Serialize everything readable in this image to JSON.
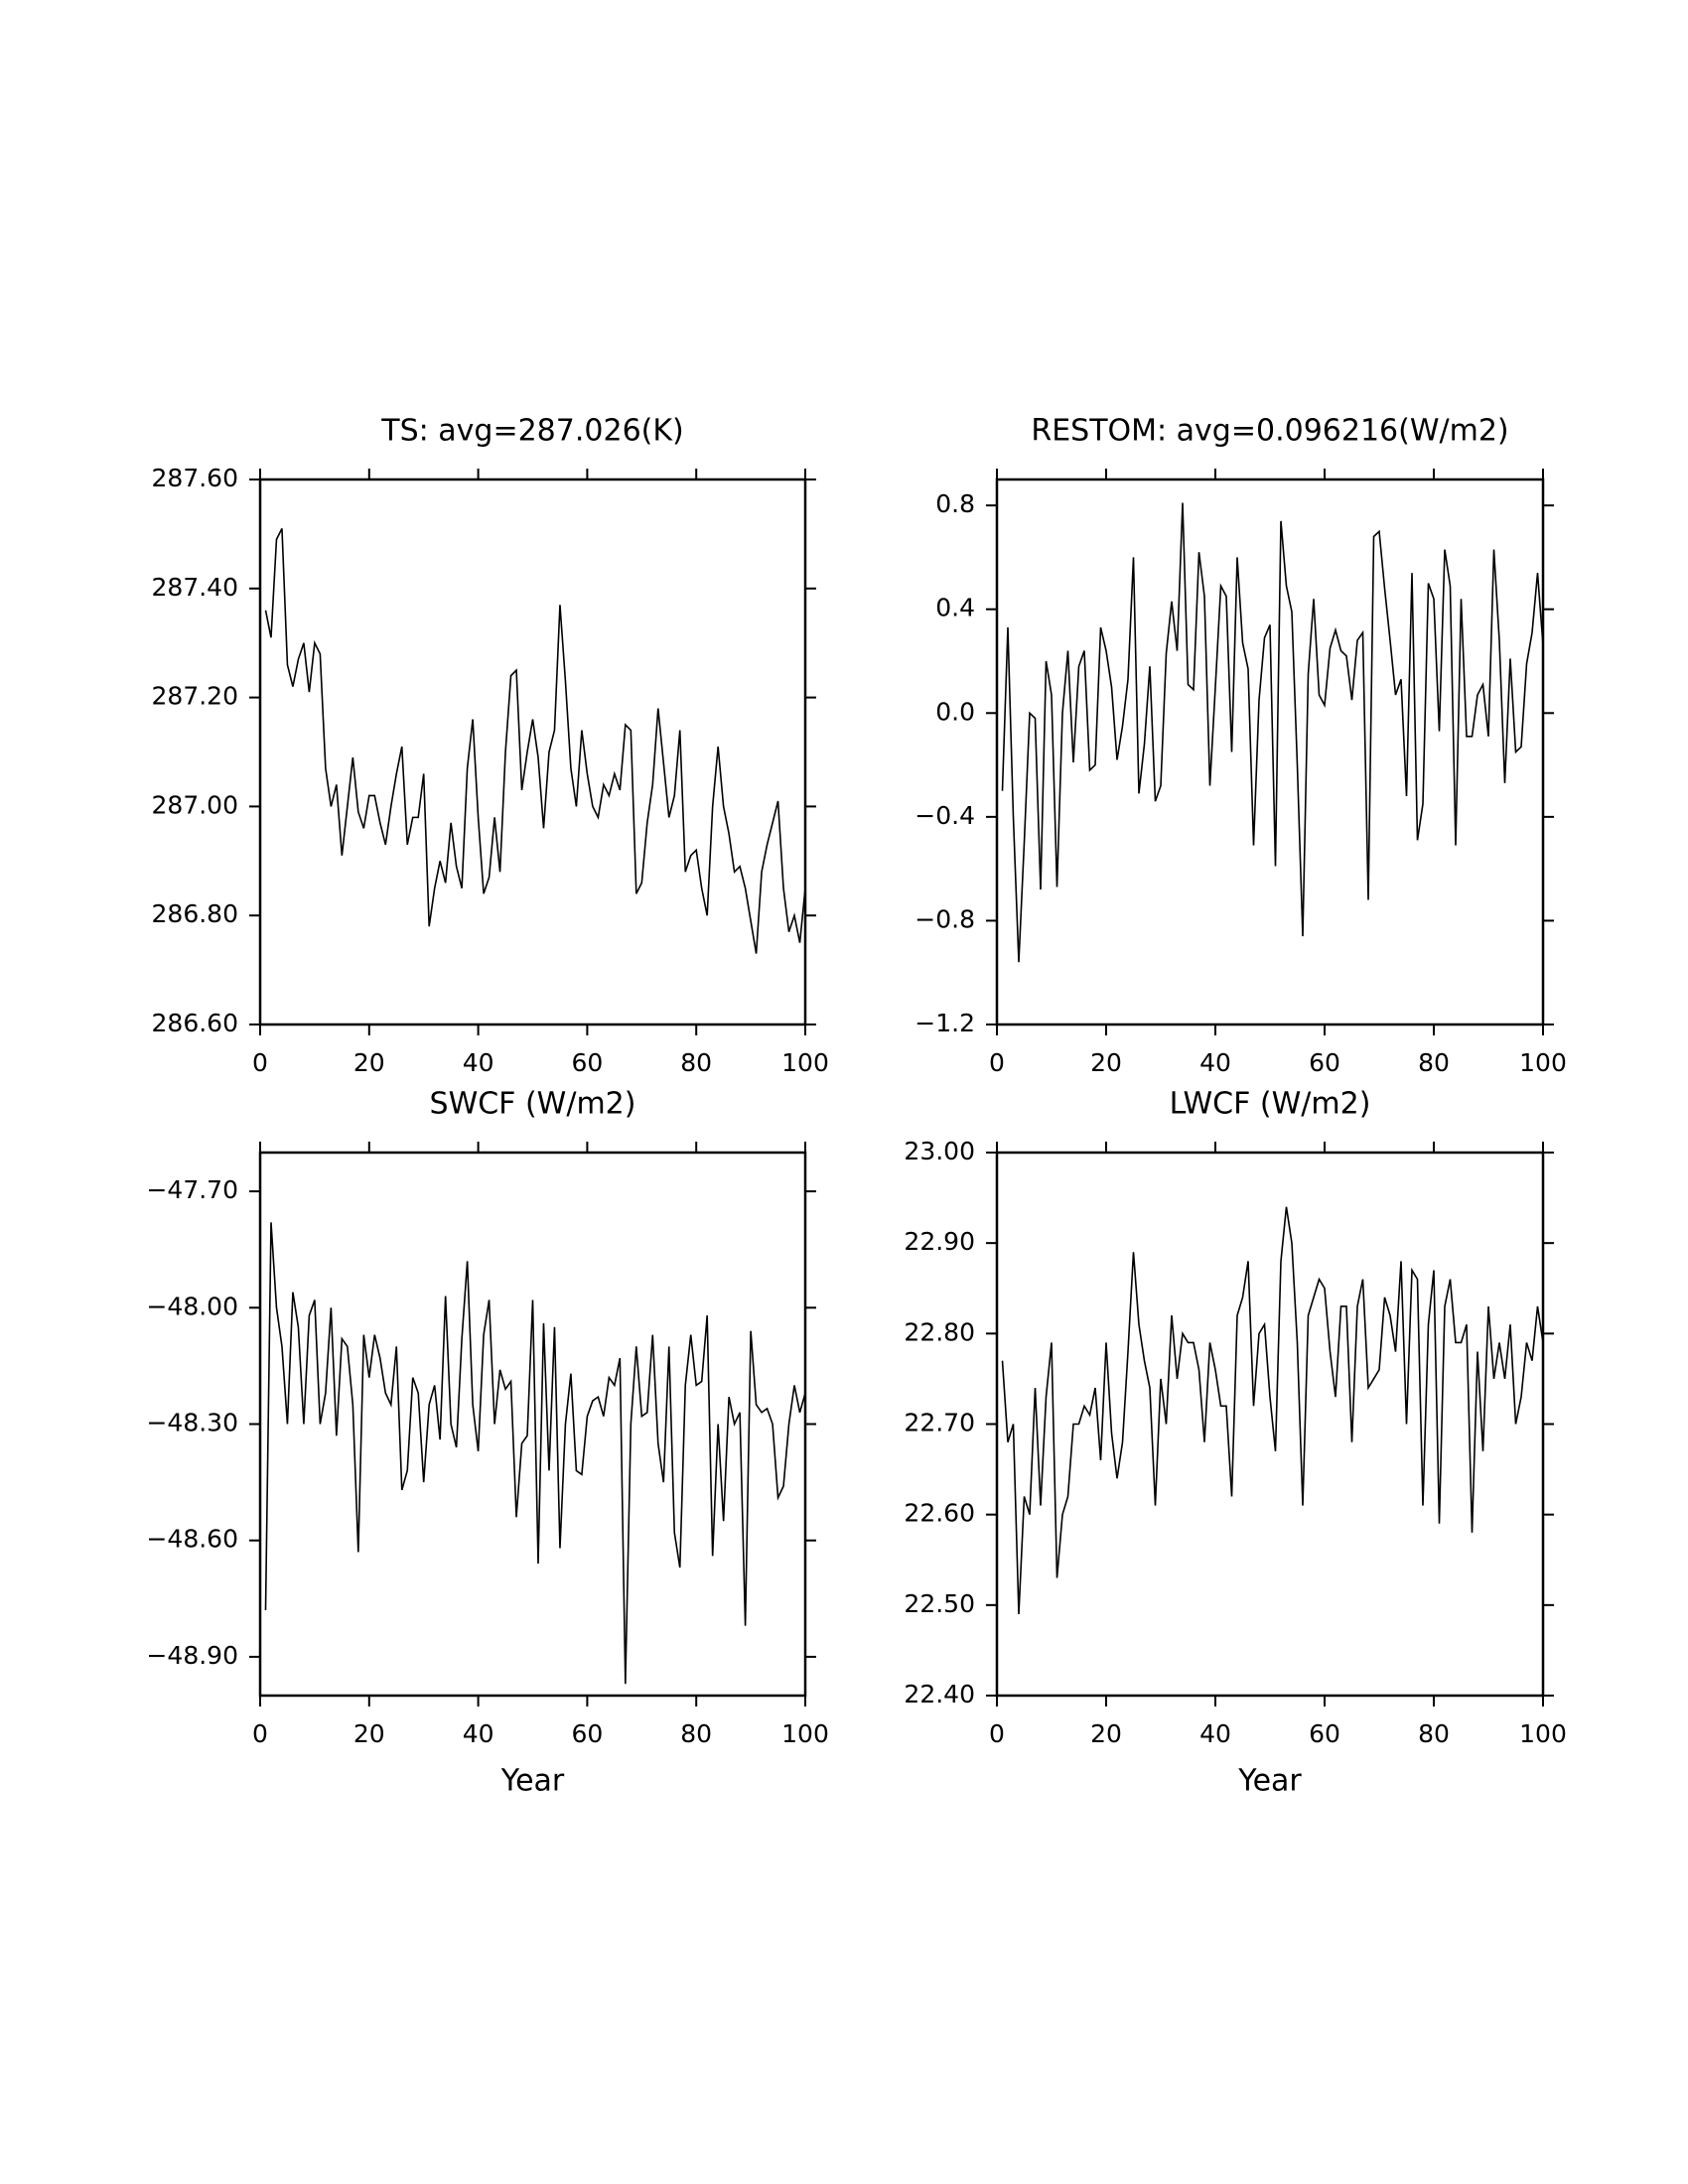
{
  "chart_data": [
    {
      "type": "line",
      "title": "TS: avg=287.026(K)",
      "color": "#000000",
      "x": [
        1,
        2,
        3,
        4,
        5,
        6,
        7,
        8,
        9,
        10,
        11,
        12,
        13,
        14,
        15,
        16,
        17,
        18,
        19,
        20,
        21,
        22,
        23,
        24,
        25,
        26,
        27,
        28,
        29,
        30,
        31,
        32,
        33,
        34,
        35,
        36,
        37,
        38,
        39,
        40,
        41,
        42,
        43,
        44,
        45,
        46,
        47,
        48,
        49,
        50,
        51,
        52,
        53,
        54,
        55,
        56,
        57,
        58,
        59,
        60,
        61,
        62,
        63,
        64,
        65,
        66,
        67,
        68,
        69,
        70,
        71,
        72,
        73,
        74,
        75,
        76,
        77,
        78,
        79,
        80,
        81,
        82,
        83,
        84,
        85,
        86,
        87,
        88,
        89,
        90,
        91,
        92,
        93,
        94,
        95,
        96,
        97,
        98,
        99,
        100
      ],
      "values": [
        287.36,
        287.31,
        287.49,
        287.51,
        287.26,
        287.22,
        287.27,
        287.3,
        287.21,
        287.3,
        287.28,
        287.07,
        287.0,
        287.04,
        286.91,
        287.0,
        287.09,
        286.99,
        286.96,
        287.02,
        287.02,
        286.97,
        286.93,
        287.0,
        287.06,
        287.11,
        286.93,
        286.98,
        286.98,
        287.06,
        286.78,
        286.85,
        286.9,
        286.86,
        286.97,
        286.89,
        286.85,
        287.07,
        287.16,
        286.98,
        286.84,
        286.87,
        286.98,
        286.88,
        287.1,
        287.24,
        287.25,
        287.03,
        287.1,
        287.16,
        287.09,
        286.96,
        287.1,
        287.14,
        287.37,
        287.23,
        287.07,
        287.0,
        287.14,
        287.06,
        287.0,
        286.98,
        287.04,
        287.02,
        287.06,
        287.03,
        287.15,
        287.14,
        286.84,
        286.86,
        286.97,
        287.04,
        287.18,
        287.08,
        286.98,
        287.02,
        287.14,
        286.88,
        286.91,
        286.92,
        286.85,
        286.8,
        287.0,
        287.11,
        287.0,
        286.95,
        286.88,
        286.89,
        286.85,
        286.79,
        286.73,
        286.88,
        286.93,
        286.97,
        287.01,
        286.85,
        286.77,
        286.8,
        286.75,
        286.85
      ],
      "xlim": [
        0,
        100
      ],
      "xticks": [
        0,
        20,
        40,
        60,
        80,
        100
      ],
      "ylim": [
        286.6,
        287.6
      ],
      "yticks": [
        {
          "value": 286.6,
          "label": "286.60"
        },
        {
          "value": 286.8,
          "label": "286.80"
        },
        {
          "value": 287.0,
          "label": "287.00"
        },
        {
          "value": 287.2,
          "label": "287.20"
        },
        {
          "value": 287.4,
          "label": "287.40"
        },
        {
          "value": 287.6,
          "label": "287.60"
        }
      ]
    },
    {
      "type": "line",
      "title": "RESTOM: avg=0.096216(W/m2)",
      "color": "#000000",
      "x": [
        1,
        2,
        3,
        4,
        5,
        6,
        7,
        8,
        9,
        10,
        11,
        12,
        13,
        14,
        15,
        16,
        17,
        18,
        19,
        20,
        21,
        22,
        23,
        24,
        25,
        26,
        27,
        28,
        29,
        30,
        31,
        32,
        33,
        34,
        35,
        36,
        37,
        38,
        39,
        40,
        41,
        42,
        43,
        44,
        45,
        46,
        47,
        48,
        49,
        50,
        51,
        52,
        53,
        54,
        55,
        56,
        57,
        58,
        59,
        60,
        61,
        62,
        63,
        64,
        65,
        66,
        67,
        68,
        69,
        70,
        71,
        72,
        73,
        74,
        75,
        76,
        77,
        78,
        79,
        80,
        81,
        82,
        83,
        84,
        85,
        86,
        87,
        88,
        89,
        90,
        91,
        92,
        93,
        94,
        95,
        96,
        97,
        98,
        99,
        100
      ],
      "values": [
        -0.3,
        0.33,
        -0.4,
        -0.96,
        -0.5,
        0.0,
        -0.02,
        -0.68,
        0.2,
        0.07,
        -0.67,
        0.0,
        0.24,
        -0.19,
        0.18,
        0.24,
        -0.22,
        -0.2,
        0.33,
        0.24,
        0.1,
        -0.18,
        -0.05,
        0.13,
        0.6,
        -0.31,
        -0.12,
        0.18,
        -0.34,
        -0.28,
        0.23,
        0.43,
        0.24,
        0.81,
        0.11,
        0.09,
        0.62,
        0.45,
        -0.28,
        0.1,
        0.49,
        0.45,
        -0.15,
        0.6,
        0.27,
        0.17,
        -0.51,
        0.05,
        0.29,
        0.34,
        -0.59,
        0.74,
        0.49,
        0.39,
        -0.2,
        -0.86,
        0.15,
        0.44,
        0.07,
        0.03,
        0.25,
        0.32,
        0.24,
        0.22,
        0.05,
        0.28,
        0.31,
        -0.72,
        0.68,
        0.7,
        0.48,
        0.28,
        0.07,
        0.13,
        -0.32,
        0.54,
        -0.49,
        -0.35,
        0.5,
        0.44,
        -0.07,
        0.63,
        0.49,
        -0.51,
        0.44,
        -0.09,
        -0.09,
        0.07,
        0.11,
        -0.09,
        0.63,
        0.28,
        -0.27,
        0.21,
        -0.15,
        -0.13,
        0.19,
        0.31,
        0.54,
        0.26
      ],
      "xlim": [
        0,
        100
      ],
      "xticks": [
        0,
        20,
        40,
        60,
        80,
        100
      ],
      "ylim": [
        -1.2,
        0.9
      ],
      "yticks": [
        {
          "value": -1.2,
          "label": "−1.2"
        },
        {
          "value": -0.8,
          "label": "−0.8"
        },
        {
          "value": -0.4,
          "label": "−0.4"
        },
        {
          "value": 0,
          "label": "0.0"
        },
        0.4,
        0.8
      ]
    },
    {
      "type": "line",
      "title": "SWCF (W/m2)",
      "xlabel": "Year",
      "color": "#000000",
      "x": [
        1,
        2,
        3,
        4,
        5,
        6,
        7,
        8,
        9,
        10,
        11,
        12,
        13,
        14,
        15,
        16,
        17,
        18,
        19,
        20,
        21,
        22,
        23,
        24,
        25,
        26,
        27,
        28,
        29,
        30,
        31,
        32,
        33,
        34,
        35,
        36,
        37,
        38,
        39,
        40,
        41,
        42,
        43,
        44,
        45,
        46,
        47,
        48,
        49,
        50,
        51,
        52,
        53,
        54,
        55,
        56,
        57,
        58,
        59,
        60,
        61,
        62,
        63,
        64,
        65,
        66,
        67,
        68,
        69,
        70,
        71,
        72,
        73,
        74,
        75,
        76,
        77,
        78,
        79,
        80,
        81,
        82,
        83,
        84,
        85,
        86,
        87,
        88,
        89,
        90,
        91,
        92,
        93,
        94,
        95,
        96,
        97,
        98,
        99,
        100
      ],
      "values": [
        -48.78,
        -47.78,
        -48.0,
        -48.1,
        -48.3,
        -47.96,
        -48.05,
        -48.3,
        -48.02,
        -47.98,
        -48.3,
        -48.22,
        -48.0,
        -48.33,
        -48.08,
        -48.1,
        -48.25,
        -48.63,
        -48.07,
        -48.18,
        -48.07,
        -48.13,
        -48.22,
        -48.25,
        -48.1,
        -48.47,
        -48.42,
        -48.18,
        -48.22,
        -48.45,
        -48.25,
        -48.2,
        -48.34,
        -47.97,
        -48.3,
        -48.36,
        -48.08,
        -47.88,
        -48.25,
        -48.37,
        -48.07,
        -47.98,
        -48.3,
        -48.16,
        -48.21,
        -48.19,
        -48.54,
        -48.35,
        -48.33,
        -47.98,
        -48.66,
        -48.04,
        -48.42,
        -48.05,
        -48.62,
        -48.3,
        -48.17,
        -48.42,
        -48.43,
        -48.28,
        -48.24,
        -48.23,
        -48.28,
        -48.18,
        -48.2,
        -48.13,
        -48.97,
        -48.3,
        -48.1,
        -48.28,
        -48.27,
        -48.07,
        -48.35,
        -48.45,
        -48.1,
        -48.58,
        -48.67,
        -48.2,
        -48.07,
        -48.2,
        -48.19,
        -48.02,
        -48.64,
        -48.3,
        -48.55,
        -48.23,
        -48.3,
        -48.27,
        -48.82,
        -48.06,
        -48.25,
        -48.27,
        -48.26,
        -48.3,
        -48.49,
        -48.46,
        -48.3,
        -48.2,
        -48.27,
        -48.22
      ],
      "xlim": [
        0,
        100
      ],
      "xticks": [
        0,
        20,
        40,
        60,
        80,
        100
      ],
      "ylim": [
        -49.0,
        -47.6
      ],
      "yticks": [
        {
          "value": -48.9,
          "label": "−48.90"
        },
        {
          "value": -48.6,
          "label": "−48.60"
        },
        {
          "value": -48.3,
          "label": "−48.30"
        },
        {
          "value": -48.0,
          "label": "−48.00"
        },
        {
          "value": -47.7,
          "label": "−47.70"
        }
      ]
    },
    {
      "type": "line",
      "title": "LWCF (W/m2)",
      "xlabel": "Year",
      "color": "#000000",
      "x": [
        1,
        2,
        3,
        4,
        5,
        6,
        7,
        8,
        9,
        10,
        11,
        12,
        13,
        14,
        15,
        16,
        17,
        18,
        19,
        20,
        21,
        22,
        23,
        24,
        25,
        26,
        27,
        28,
        29,
        30,
        31,
        32,
        33,
        34,
        35,
        36,
        37,
        38,
        39,
        40,
        41,
        42,
        43,
        44,
        45,
        46,
        47,
        48,
        49,
        50,
        51,
        52,
        53,
        54,
        55,
        56,
        57,
        58,
        59,
        60,
        61,
        62,
        63,
        64,
        65,
        66,
        67,
        68,
        69,
        70,
        71,
        72,
        73,
        74,
        75,
        76,
        77,
        78,
        79,
        80,
        81,
        82,
        83,
        84,
        85,
        86,
        87,
        88,
        89,
        90,
        91,
        92,
        93,
        94,
        95,
        96,
        97,
        98,
        99,
        100
      ],
      "values": [
        22.77,
        22.68,
        22.7,
        22.49,
        22.62,
        22.6,
        22.74,
        22.61,
        22.73,
        22.79,
        22.53,
        22.6,
        22.62,
        22.7,
        22.7,
        22.72,
        22.71,
        22.74,
        22.66,
        22.79,
        22.69,
        22.64,
        22.68,
        22.78,
        22.89,
        22.81,
        22.77,
        22.74,
        22.61,
        22.75,
        22.7,
        22.82,
        22.75,
        22.8,
        22.79,
        22.79,
        22.76,
        22.68,
        22.79,
        22.76,
        22.72,
        22.72,
        22.62,
        22.82,
        22.84,
        22.88,
        22.72,
        22.8,
        22.81,
        22.73,
        22.67,
        22.88,
        22.94,
        22.9,
        22.79,
        22.61,
        22.82,
        22.84,
        22.86,
        22.85,
        22.78,
        22.73,
        22.83,
        22.83,
        22.68,
        22.83,
        22.86,
        22.74,
        22.75,
        22.76,
        22.84,
        22.82,
        22.78,
        22.88,
        22.7,
        22.87,
        22.86,
        22.61,
        22.81,
        22.87,
        22.59,
        22.83,
        22.86,
        22.79,
        22.79,
        22.81,
        22.58,
        22.78,
        22.67,
        22.83,
        22.75,
        22.79,
        22.75,
        22.81,
        22.7,
        22.73,
        22.79,
        22.77,
        22.83,
        22.79
      ],
      "xlim": [
        0,
        100
      ],
      "xticks": [
        0,
        20,
        40,
        60,
        80,
        100
      ],
      "ylim": [
        22.4,
        23.0
      ],
      "yticks": [
        {
          "value": 22.4,
          "label": "22.40"
        },
        {
          "value": 22.5,
          "label": "22.50"
        },
        {
          "value": 22.6,
          "label": "22.60"
        },
        {
          "value": 22.7,
          "label": "22.70"
        },
        {
          "value": 22.8,
          "label": "22.80"
        },
        {
          "value": 22.9,
          "label": "22.90"
        },
        {
          "value": 23.0,
          "label": "23.00"
        }
      ]
    }
  ]
}
